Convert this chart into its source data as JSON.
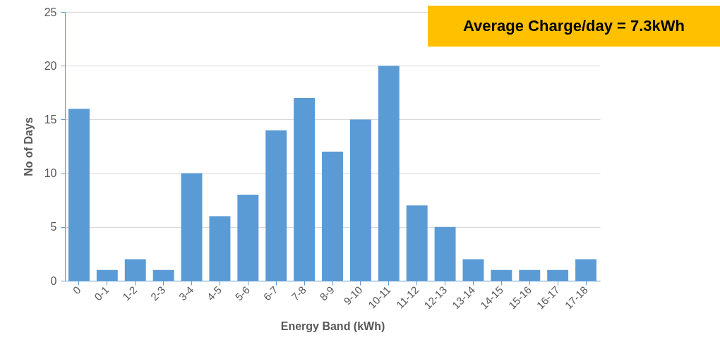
{
  "chart_data": {
    "type": "bar",
    "xlabel": "Energy Band (kWh)",
    "ylabel": "No of Days",
    "categories": [
      "0",
      "0-1",
      "1-2",
      "2-3",
      "3-4",
      "4-5",
      "5-6",
      "6-7",
      "7-8",
      "8-9",
      "9-10",
      "10-11",
      "11-12",
      "12-13",
      "13-14",
      "14-15",
      "15-16",
      "16-17",
      "17-18"
    ],
    "values": [
      16,
      1,
      2,
      1,
      10,
      6,
      8,
      14,
      17,
      12,
      15,
      20,
      7,
      5,
      2,
      1,
      1,
      1,
      2
    ],
    "color": "#5b9bd5",
    "ylim": [
      0,
      25
    ],
    "yticks": [
      0,
      5,
      10,
      15,
      20,
      25
    ],
    "grid": "y",
    "annotations": [
      "Average Charge/day = 7.3kWh"
    ]
  }
}
